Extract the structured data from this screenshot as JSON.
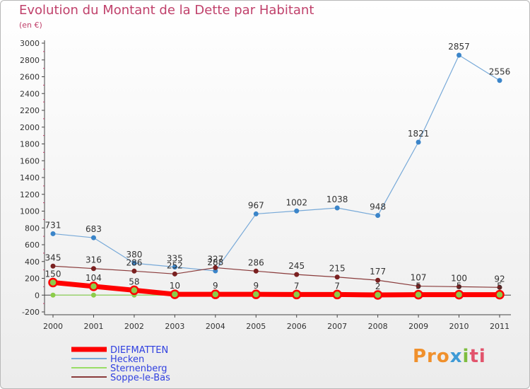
{
  "chart_data": {
    "type": "line",
    "title": "Evolution du Montant de la Dette par Habitant",
    "subtitle": "(en €)",
    "x": [
      "2000",
      "2001",
      "2002",
      "2003",
      "2004",
      "2005",
      "2006",
      "2007",
      "2008",
      "2009",
      "2010",
      "2011"
    ],
    "yticks": [
      -200,
      0,
      200,
      400,
      600,
      800,
      1000,
      1200,
      1400,
      1600,
      1800,
      2000,
      2200,
      2400,
      2600,
      2800,
      3000
    ],
    "ylim": [
      -200,
      3000
    ],
    "grid": false,
    "legend_position": "bottom-left",
    "series": [
      {
        "name": "DIEFMATTEN",
        "color": "#ff0000",
        "marker_color": "#e83c3c",
        "values": [
          150,
          104,
          58,
          10,
          9,
          9,
          7,
          7,
          2,
          5,
          5,
          5
        ],
        "labels": [
          "150",
          "104",
          "58",
          "10",
          "9",
          "9",
          "7",
          "7",
          "2",
          "5",
          "5",
          "5"
        ]
      },
      {
        "name": "Hecken",
        "color": "#77a9d8",
        "marker_color": "#3b85c9",
        "values": [
          731,
          683,
          380,
          335,
          288,
          967,
          1002,
          1038,
          948,
          1821,
          2857,
          2556
        ],
        "labels": [
          "731",
          "683",
          "380",
          "335",
          "288",
          "967",
          "1002",
          "1038",
          "948",
          "1821",
          "2857",
          "2556"
        ]
      },
      {
        "name": "Sternenberg",
        "color": "#99dd66",
        "marker_color": "#8ccc4a",
        "values": [
          0,
          0,
          0,
          0,
          0,
          0,
          0,
          0,
          0,
          0,
          0,
          0
        ],
        "labels": [
          "",
          "",
          "",
          "",
          "",
          "",
          "",
          "",
          "",
          "",
          "",
          ""
        ]
      },
      {
        "name": "Soppe-le-Bas",
        "color": "#8a3b3b",
        "marker_color": "#7a2020",
        "values": [
          345,
          316,
          286,
          252,
          327,
          286,
          245,
          215,
          177,
          107,
          100,
          92
        ],
        "labels": [
          "345",
          "316",
          "286",
          "252",
          "327",
          "286",
          "245",
          "215",
          "177",
          "107",
          "100",
          "92"
        ]
      }
    ]
  },
  "logo": {
    "part1": "Pro",
    "part2": "x",
    "part3": "i",
    "part4": "ti"
  }
}
